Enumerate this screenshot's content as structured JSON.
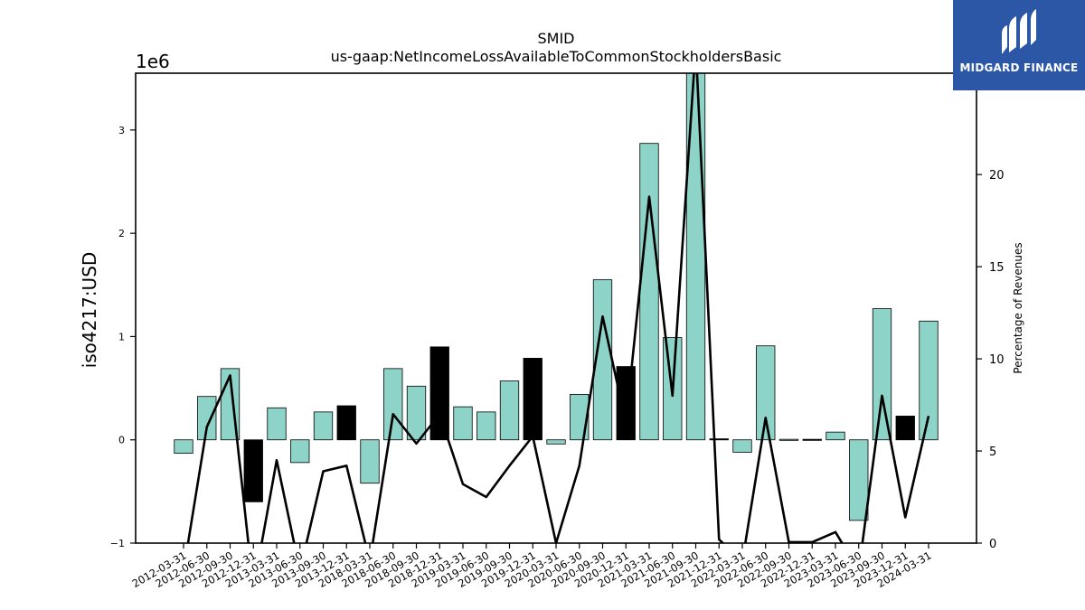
{
  "brand": {
    "name": "MIDGARD FINANCE"
  },
  "colors": {
    "positive_bar": "#8dd3c7",
    "negative_bar_highlight": "#000000",
    "line": "#000000",
    "logo_bg": "#2b57a6"
  },
  "chart_data": {
    "type": "bar",
    "title": "SMID",
    "subtitle": "us-gaap:NetIncomeLossAvailableToCommonStockholdersBasic",
    "ylabel": "iso4217:USD",
    "y_multiplier_label": "1e6",
    "y2label": "Percentage of Revenues",
    "ylim": [
      -1000000,
      3550000
    ],
    "y2lim": [
      0,
      25.5
    ],
    "y_ticks": [
      -1000000,
      0,
      1000000,
      2000000,
      3000000
    ],
    "y_tick_labels": [
      "−1",
      "0",
      "1",
      "2",
      "3"
    ],
    "y2_ticks": [
      0,
      5,
      10,
      15,
      20
    ],
    "y2_tick_labels": [
      "0",
      "5",
      "10",
      "15",
      "20"
    ],
    "categories": [
      "2012-03-31",
      "2012-06-30",
      "2012-09-30",
      "2012-12-31",
      "2013-03-31",
      "2013-06-30",
      "2013-09-30",
      "2013-12-31",
      "2018-03-31",
      "2018-06-30",
      "2018-09-30",
      "2018-12-31",
      "2019-03-31",
      "2019-06-30",
      "2019-09-30",
      "2019-12-31",
      "2020-03-31",
      "2020-06-30",
      "2020-09-30",
      "2020-12-31",
      "2021-03-31",
      "2021-06-30",
      "2021-09-30",
      "2021-12-31",
      "2022-03-31",
      "2022-06-30",
      "2022-09-30",
      "2022-12-31",
      "2023-03-31",
      "2023-06-30",
      "2023-09-30",
      "2023-12-31",
      "2024-03-31"
    ],
    "series": [
      {
        "values": [
          -130000,
          420000,
          690000,
          -600000,
          310000,
          -220000,
          270000,
          330000,
          -420000,
          690000,
          520000,
          900000,
          320000,
          270000,
          570000,
          790000,
          -40000,
          440000,
          1550000,
          710000,
          2870000,
          990000,
          3700000,
          10000,
          -120000,
          910000,
          5000,
          5000,
          75000,
          -780000,
          1270000,
          230000,
          1150000
        ],
        "highlight": [
          false,
          false,
          false,
          true,
          false,
          false,
          false,
          true,
          false,
          false,
          false,
          true,
          false,
          false,
          false,
          true,
          false,
          false,
          false,
          true,
          false,
          false,
          false,
          true,
          false,
          false,
          false,
          true,
          false,
          false,
          false,
          true,
          false
        ]
      },
      {
        "name": "Percentage of Revenues",
        "type": "line",
        "values": [
          -1.5,
          6.3,
          9.1,
          -2.5,
          4.5,
          -1.5,
          3.9,
          4.2,
          -1.0,
          7.0,
          5.4,
          7.0,
          3.2,
          2.5,
          4.2,
          5.8,
          0.0,
          4.2,
          12.3,
          6.5,
          18.8,
          8.0,
          27.0,
          0.2,
          -1.0,
          6.8,
          0.05,
          0.05,
          0.6,
          -1.5,
          8.0,
          1.4,
          6.9
        ]
      }
    ],
    "grid": false
  }
}
